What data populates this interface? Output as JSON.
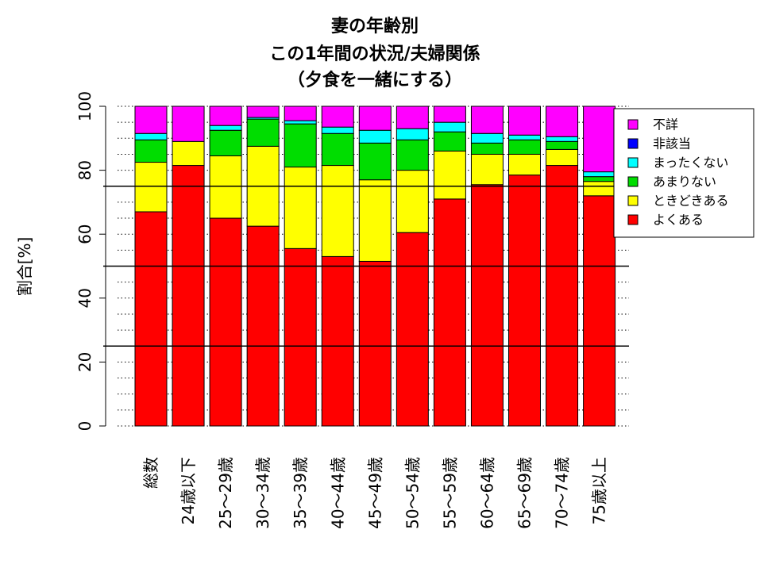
{
  "chart_data": {
    "type": "bar",
    "stacked": true,
    "title": [
      "妻の年齢別",
      "この1年間の状況/夫婦関係",
      "（夕食を一緒にする）"
    ],
    "ylabel": "割合[%]",
    "xlabel": "",
    "ylim": [
      0,
      100
    ],
    "y_ticks": [
      "0",
      "20",
      "40",
      "60",
      "80",
      "100"
    ],
    "reference_lines": [
      25,
      50,
      75
    ],
    "grid": "dotted-horizontal",
    "legend_position": "top-right",
    "categories": [
      "総数",
      "24歳以下",
      "25～29歳",
      "30～34歳",
      "35～39歳",
      "40～44歳",
      "45～49歳",
      "50～54歳",
      "55～59歳",
      "60～64歳",
      "65～69歳",
      "70～74歳",
      "75歳以上"
    ],
    "series": [
      {
        "name": "よくある",
        "color": "#ff0000",
        "values": [
          67.0,
          81.5,
          65.0,
          62.5,
          55.5,
          53.0,
          51.5,
          60.5,
          71.0,
          75.5,
          78.5,
          81.5,
          72.0
        ]
      },
      {
        "name": "ときどきある",
        "color": "#ffff00",
        "values": [
          15.5,
          7.5,
          19.5,
          25.0,
          25.5,
          28.5,
          25.5,
          19.5,
          15.0,
          9.5,
          6.5,
          5.0,
          4.5
        ]
      },
      {
        "name": "あまりない",
        "color": "#00dd00",
        "values": [
          7.0,
          0.0,
          8.0,
          8.5,
          13.5,
          10.0,
          11.5,
          9.5,
          6.0,
          3.5,
          4.5,
          2.5,
          1.5
        ]
      },
      {
        "name": "まったくない",
        "color": "#00ffff",
        "values": [
          2.0,
          0.0,
          1.5,
          0.5,
          1.0,
          2.0,
          4.0,
          3.5,
          3.0,
          3.0,
          1.5,
          1.5,
          1.5
        ]
      },
      {
        "name": "非該当",
        "color": "#0000ff",
        "values": [
          0.0,
          0.0,
          0.0,
          0.0,
          0.0,
          0.0,
          0.0,
          0.0,
          0.0,
          0.0,
          0.0,
          0.0,
          0.0
        ]
      },
      {
        "name": "不詳",
        "color": "#ff00ff",
        "values": [
          8.5,
          11.0,
          6.0,
          3.5,
          4.5,
          6.5,
          7.5,
          7.0,
          5.0,
          8.5,
          9.0,
          9.5,
          20.5
        ]
      }
    ],
    "legend_order": [
      "不詳",
      "非該当",
      "まったくない",
      "あまりない",
      "ときどきある",
      "よくある"
    ]
  }
}
